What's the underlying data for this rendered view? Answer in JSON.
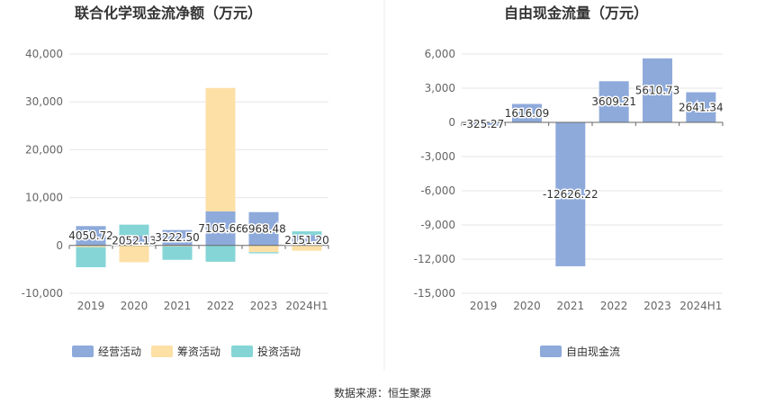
{
  "source": "数据来源：恒生聚源",
  "chart_data": [
    {
      "type": "bar",
      "stacked": true,
      "title": "联合化学现金流净额（万元）",
      "categories": [
        "2019",
        "2020",
        "2021",
        "2022",
        "2023",
        "2024H1"
      ],
      "ylim": [
        -10000,
        40000
      ],
      "yticks": [
        -10000,
        0,
        10000,
        20000,
        30000,
        40000
      ],
      "ytick_labels": [
        "-10,000",
        "0",
        "10,000",
        "20,000",
        "30,000",
        "40,000"
      ],
      "grid": true,
      "legend_position": "bottom",
      "series": [
        {
          "name": "经营活动",
          "color": "#8eaadb",
          "values": [
            4050.72,
            2052.13,
            3222.5,
            7105.66,
            6968.48,
            2151.2
          ]
        },
        {
          "name": "筹资活动",
          "color": "#fde0a6",
          "values": [
            -350,
            -3500,
            -200,
            25800,
            -1400,
            -1100
          ]
        },
        {
          "name": "投资活动",
          "color": "#85d5d6",
          "values": [
            -4200,
            2300,
            -2800,
            -3400,
            -250,
            800
          ]
        }
      ],
      "data_labels": [
        "4050.72",
        "2052.13",
        "3222.50",
        "7105.66",
        "6968.48",
        "2151.20"
      ]
    },
    {
      "type": "bar",
      "title": "自由现金流量（万元）",
      "categories": [
        "2019",
        "2020",
        "2021",
        "2022",
        "2023",
        "2024H1"
      ],
      "ylim": [
        -15000,
        6000
      ],
      "yticks": [
        -15000,
        -12000,
        -9000,
        -6000,
        -3000,
        0,
        3000,
        6000
      ],
      "ytick_labels": [
        "-15,000",
        "-12,000",
        "-9,000",
        "-6,000",
        "-3,000",
        "0",
        "3,000",
        "6,000"
      ],
      "grid": true,
      "legend_position": "bottom",
      "series": [
        {
          "name": "自由现金流",
          "color": "#8eaadb",
          "values": [
            -325.27,
            1616.09,
            -12626.22,
            3609.21,
            5610.73,
            2641.34
          ]
        }
      ],
      "data_labels": [
        "-325.27",
        "1616.09",
        "-12626.22",
        "3609.21",
        "5610.73",
        "2641.34"
      ]
    }
  ]
}
